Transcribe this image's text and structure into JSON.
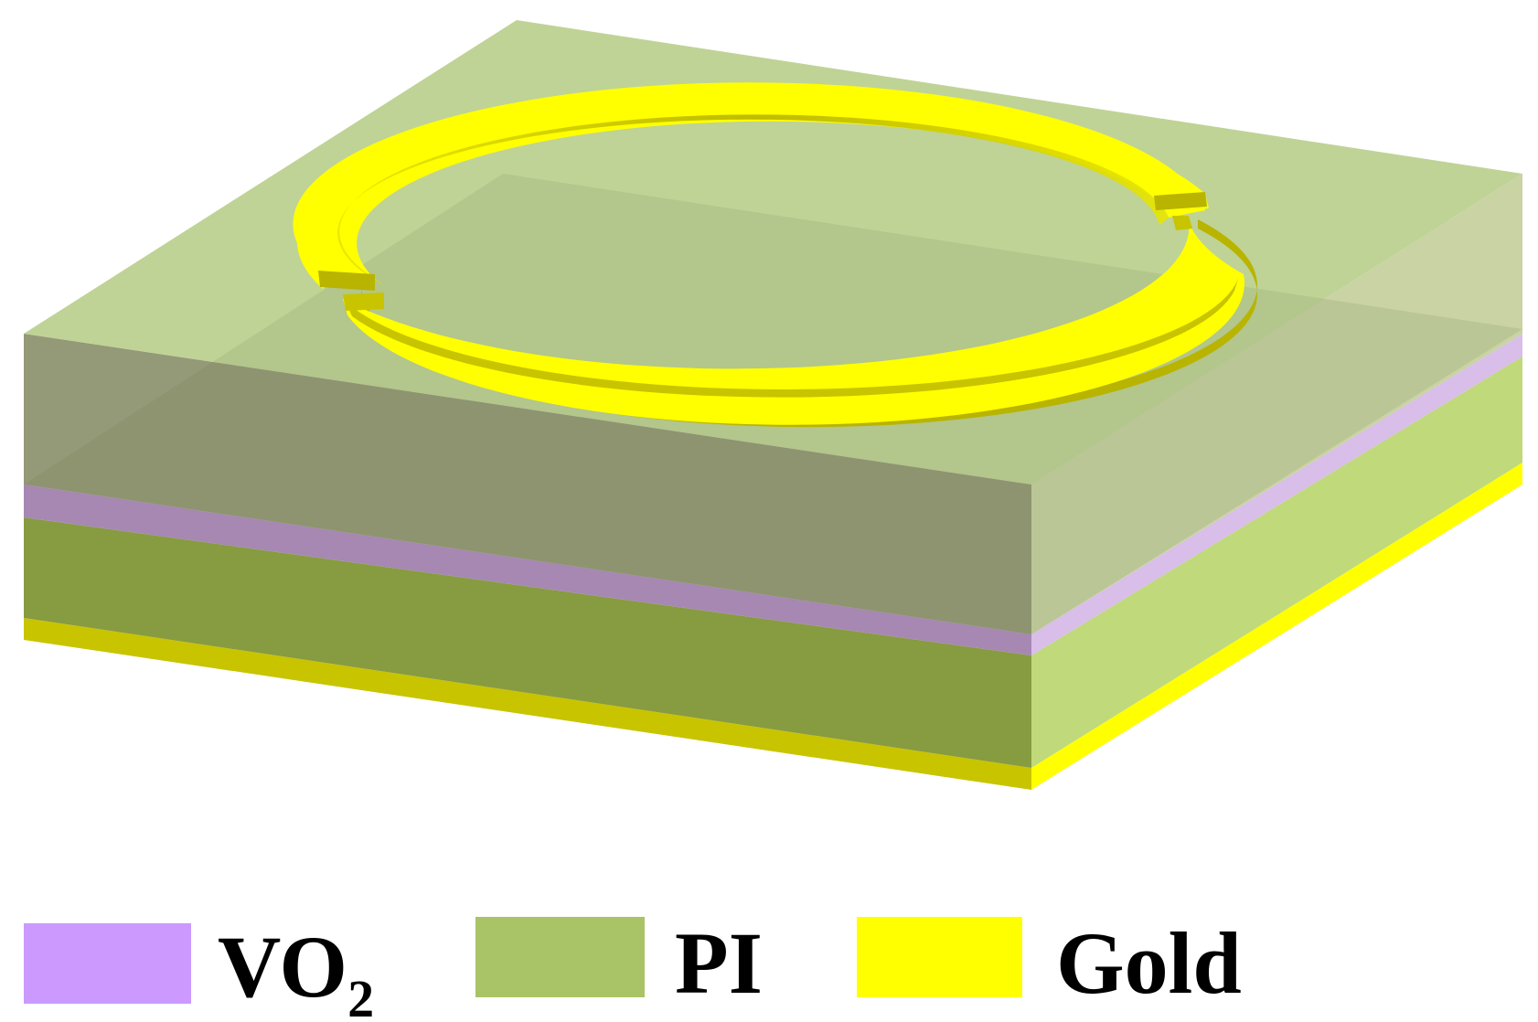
{
  "colors": {
    "vo2": "#CC99FF",
    "pi": "#A9C466",
    "gold": "#FFFF00",
    "gold_shadow": "#C9C400",
    "background": "#FFFFFF"
  },
  "legend": {
    "items": [
      {
        "key": "vo2",
        "label": "VO",
        "subscript": "2"
      },
      {
        "key": "pi",
        "label": "PI"
      },
      {
        "key": "gold",
        "label": "Gold"
      }
    ]
  }
}
